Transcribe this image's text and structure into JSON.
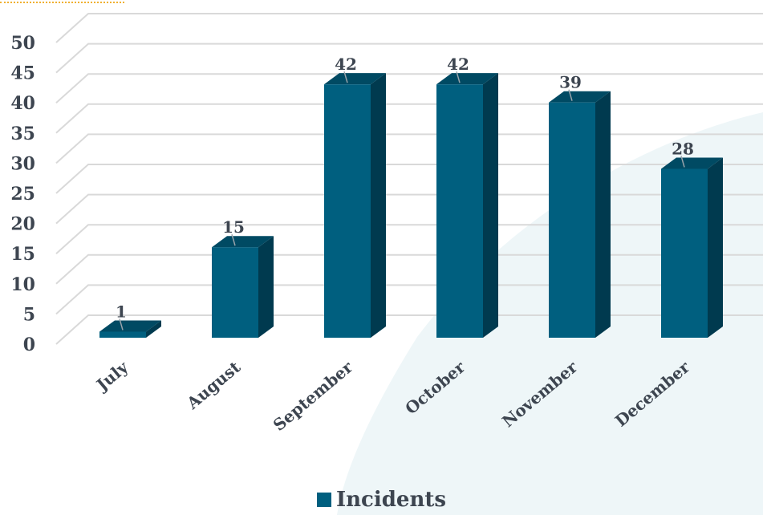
{
  "colors": {
    "bar_front": "#005f7f",
    "bar_top": "#004a63",
    "bar_side": "#003a4f",
    "grid": "#d9d9d9",
    "text": "#3d4550",
    "bg_shape": "#eef6f8",
    "accent_dots": "#f0b030"
  },
  "chart_data": {
    "type": "bar",
    "categories": [
      "July",
      "August",
      "September",
      "October",
      "November",
      "December"
    ],
    "series": [
      {
        "name": "Incidents",
        "values": [
          1,
          15,
          42,
          42,
          39,
          28
        ]
      }
    ],
    "ylim": [
      0,
      50
    ],
    "yticks": [
      0,
      5,
      10,
      15,
      20,
      25,
      30,
      35,
      40,
      45,
      50
    ],
    "grid": true,
    "legend": "bottom",
    "style": "3d-column"
  }
}
